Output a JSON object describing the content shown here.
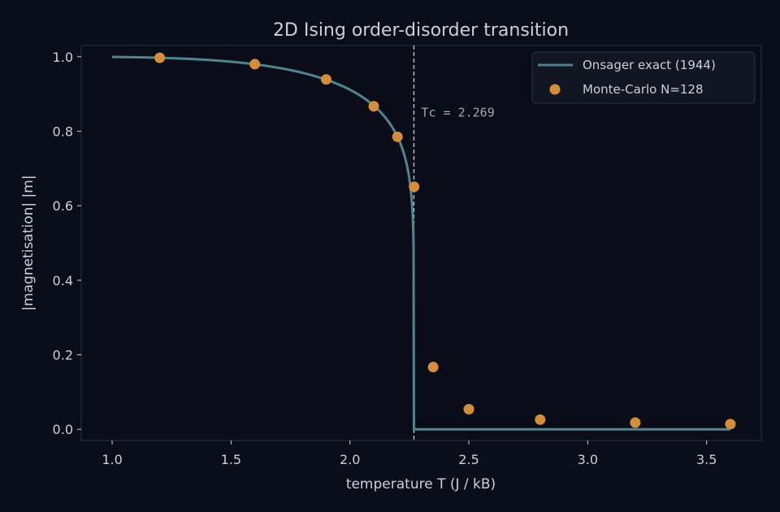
{
  "chart_data": {
    "type": "line",
    "title": "2D Ising order-disorder transition",
    "xlabel": "temperature  T   (J / kB)",
    "ylabel": "|magnetisation|   |m|",
    "xlim": [
      0.87,
      3.73
    ],
    "ylim": [
      -0.03,
      1.03
    ],
    "xticks": [
      "1.0",
      "1.5",
      "2.0",
      "2.5",
      "3.0",
      "3.5"
    ],
    "yticks": [
      "0.0",
      "0.2",
      "0.4",
      "0.6",
      "0.8",
      "1.0"
    ],
    "critical_temperature": 2.269,
    "annotation": "Tc = 2.269",
    "legend_position": "top-right",
    "grid": false,
    "series": [
      {
        "name": "Onsager exact (1944)",
        "kind": "line",
        "color": "#4e8591",
        "x_range": [
          1.0,
          3.6
        ]
      },
      {
        "name": "Monte-Carlo  N=128",
        "kind": "scatter",
        "color": "#d38d3b",
        "x": [
          1.2,
          1.6,
          1.9,
          2.1,
          2.2,
          2.27,
          2.35,
          2.5,
          2.8,
          3.2,
          3.6
        ],
        "y": [
          0.997,
          0.98,
          0.939,
          0.867,
          0.785,
          0.651,
          0.167,
          0.054,
          0.026,
          0.018,
          0.014
        ]
      }
    ]
  }
}
